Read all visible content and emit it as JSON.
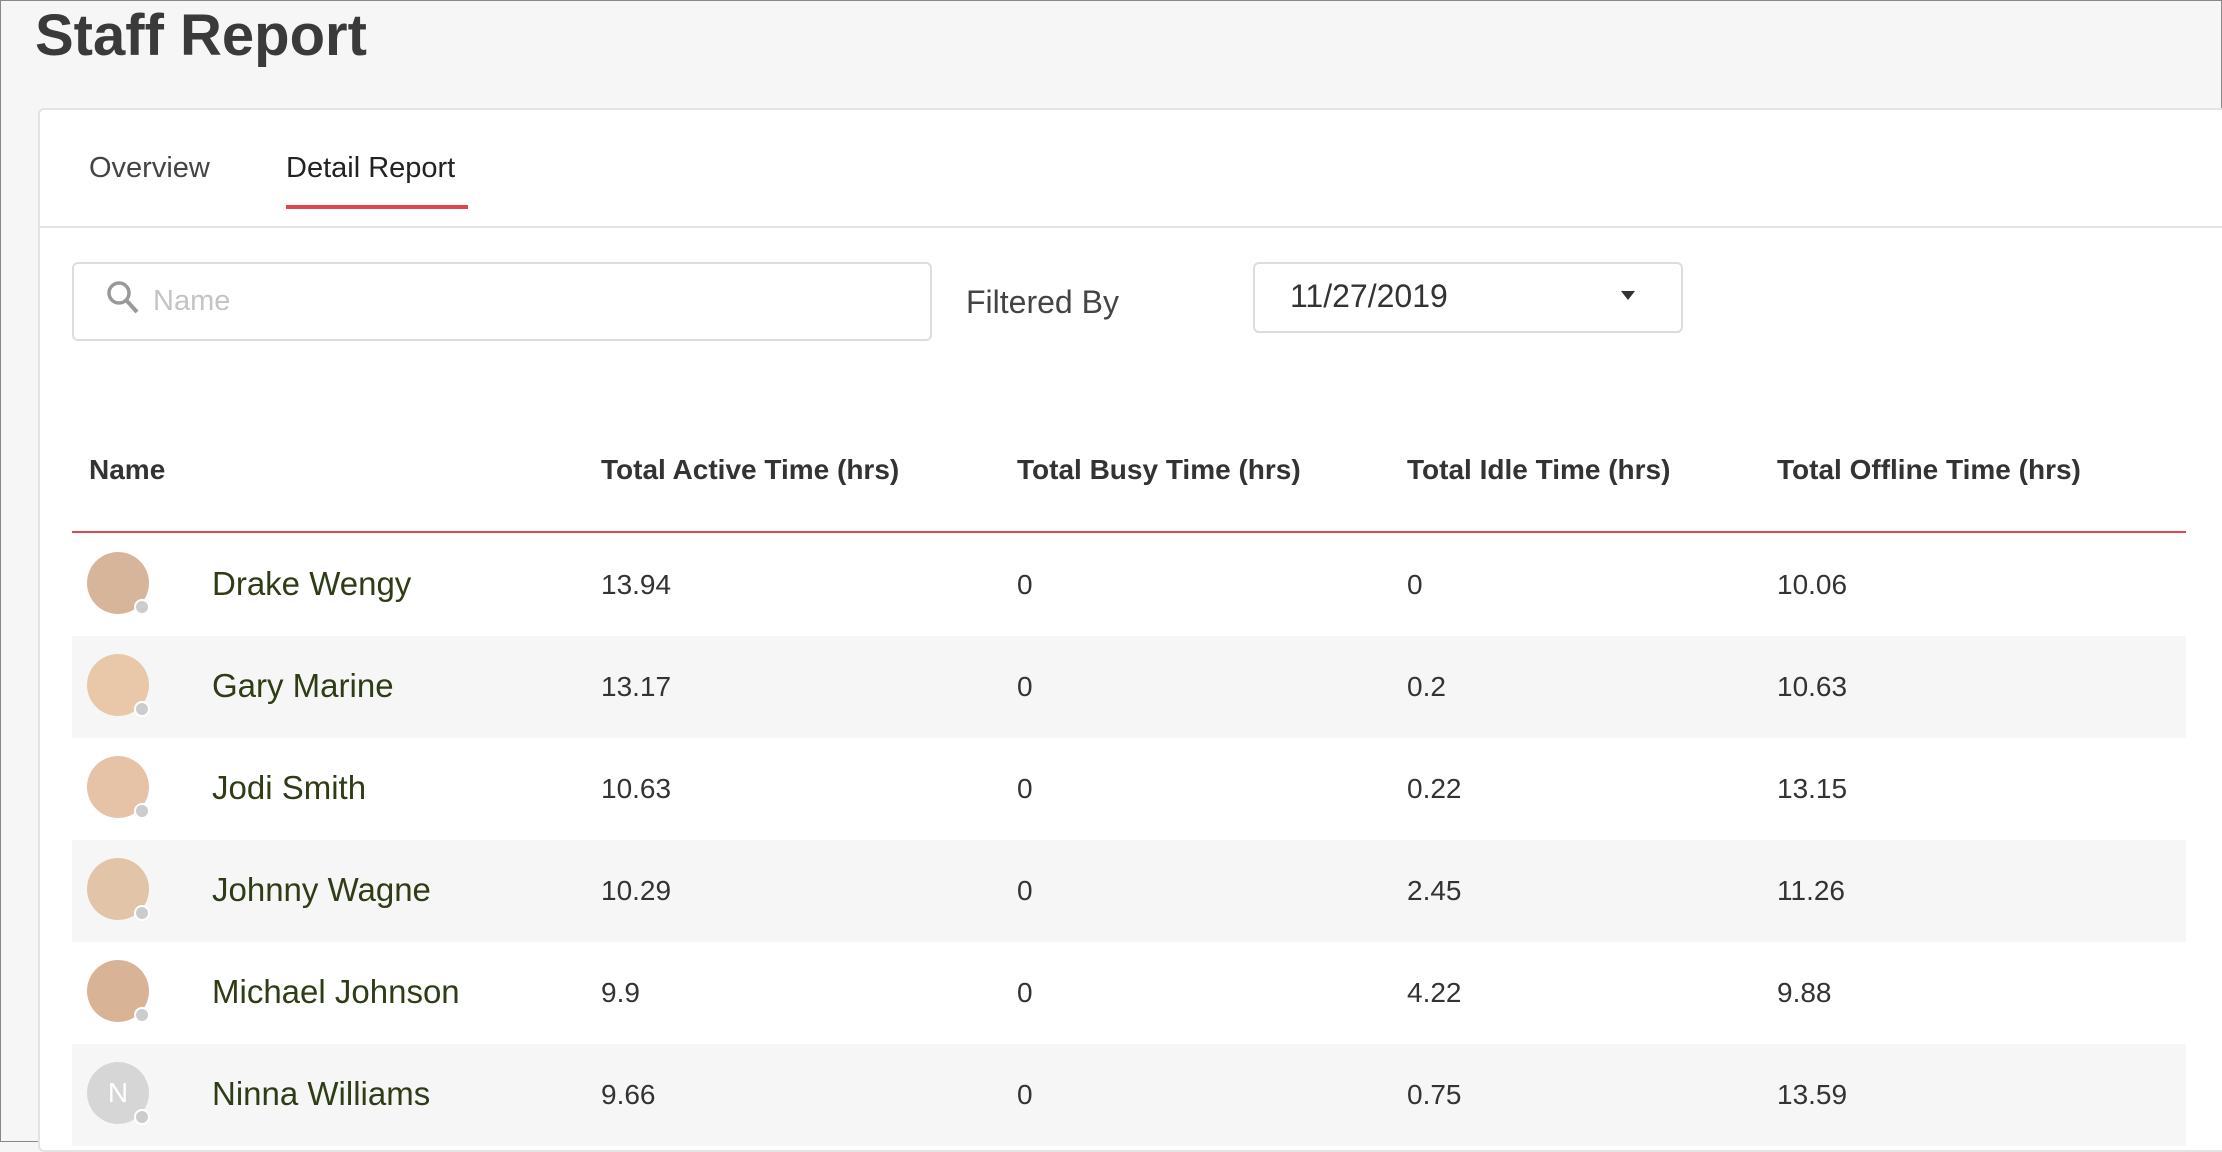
{
  "header": {
    "title": "Staff Report"
  },
  "tabs": [
    "Overview",
    "Detail Report"
  ],
  "active_tab": 1,
  "filters": {
    "search_placeholder": "Name",
    "filter_label": "Filtered By",
    "date": "11/27/2019"
  },
  "table": {
    "columns": [
      "Name",
      "Total Active Time (hrs)",
      "Total Busy Time (hrs)",
      "Total Idle Time (hrs)",
      "Total Offline Time (hrs)"
    ],
    "rows": [
      {
        "name": "Drake Wengy",
        "values": [
          13.94,
          0,
          0,
          10.06
        ]
      },
      {
        "name": "Gary Marine",
        "values": [
          13.17,
          0,
          0.2,
          10.63
        ]
      },
      {
        "name": "Jodi Smith",
        "values": [
          10.63,
          0,
          0.22,
          13.15
        ]
      },
      {
        "name": "Johnny Wagne",
        "values": [
          10.29,
          0,
          2.45,
          11.26
        ]
      },
      {
        "name": "Michael Johnson",
        "values": [
          9.9,
          0,
          4.22,
          9.88
        ]
      },
      {
        "name": "Ninna Williams",
        "initial": "N",
        "values": [
          9.66,
          0,
          0.75,
          13.59
        ]
      }
    ]
  }
}
